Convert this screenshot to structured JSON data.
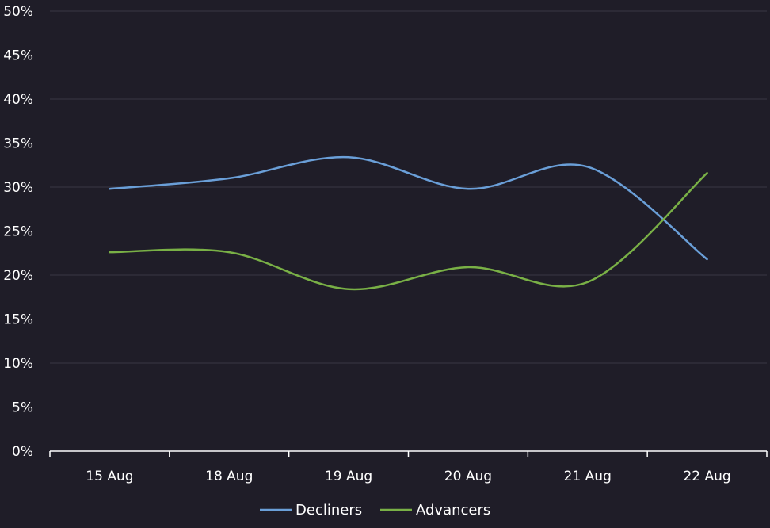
{
  "colors": {
    "background": "#1f1d28",
    "grid": "#3a3845",
    "axis": "#ffffff",
    "text": "#ffffff"
  },
  "chart_data": {
    "type": "line",
    "categories": [
      "15 Aug",
      "18 Aug",
      "19 Aug",
      "20 Aug",
      "21 Aug",
      "22 Aug"
    ],
    "y_ticks": [
      "0%",
      "5%",
      "10%",
      "15%",
      "20%",
      "25%",
      "30%",
      "35%",
      "40%",
      "45%",
      "50%"
    ],
    "ylim": [
      0,
      50
    ],
    "y_unit": "%",
    "grid": true,
    "legend_position": "bottom-center",
    "series": [
      {
        "name": "Decliners",
        "color": "#6a9fd8",
        "values": [
          29.8,
          31.0,
          33.4,
          29.8,
          32.3,
          21.8
        ]
      },
      {
        "name": "Advancers",
        "color": "#79b046",
        "values": [
          22.6,
          22.6,
          18.4,
          20.9,
          19.2,
          31.6
        ]
      }
    ]
  }
}
